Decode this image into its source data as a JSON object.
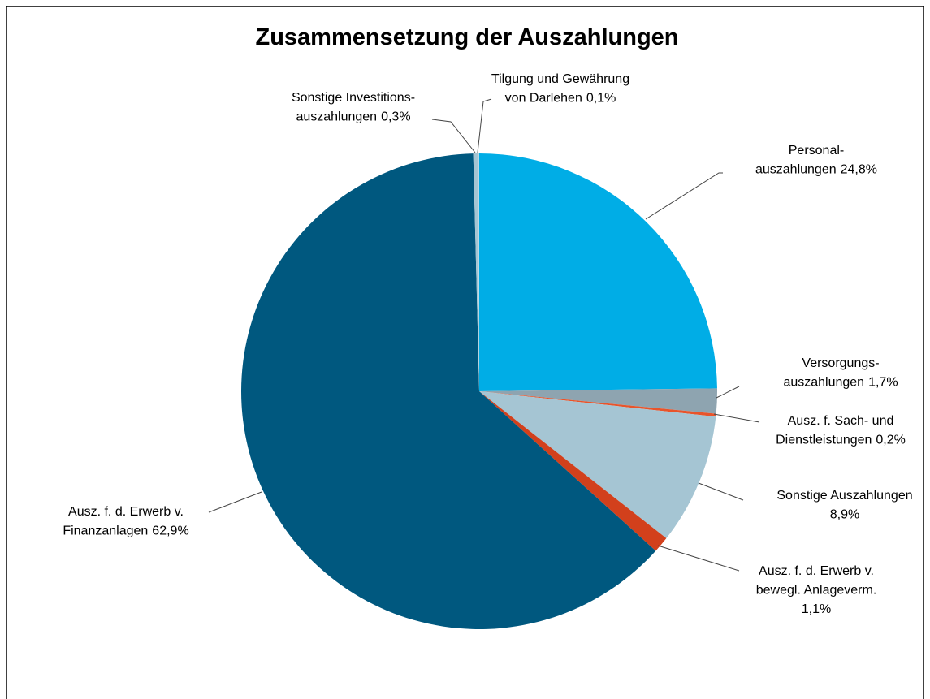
{
  "chart_data": {
    "type": "pie",
    "title": "Zusammensetzung der Auszahlungen",
    "categories": [
      [
        "Personal-",
        "auszahlungen"
      ],
      [
        "Versorgungs-",
        "auszahlungen"
      ],
      [
        "Ausz. f. Sach- und",
        "Dienstleistungen"
      ],
      [
        "Sonstige Auszahlungen"
      ],
      [
        "Ausz. f. d. Erwerb v.",
        "bewegl. Anlageverm."
      ],
      [
        "Ausz. f. d. Erwerb v.",
        "Finanzanlagen"
      ],
      [
        "Sonstige Investitions-",
        "auszahlungen"
      ],
      [
        "Tilgung und Gewährung",
        "von Darlehen"
      ]
    ],
    "values": [
      24.8,
      1.7,
      0.2,
      8.9,
      1.1,
      62.9,
      0.3,
      0.1
    ],
    "value_labels": [
      "24,8%",
      "1,7%",
      "0,2%",
      "8,9%",
      "1,1%",
      "62,9%",
      "0,3%",
      "0,1%"
    ],
    "colors": [
      "#00ADE6",
      "#8EA4B0",
      "#E8542B",
      "#A5C5D3",
      "#D2401C",
      "#00587F",
      "#A5C5D3",
      "#B8D9E8"
    ]
  }
}
